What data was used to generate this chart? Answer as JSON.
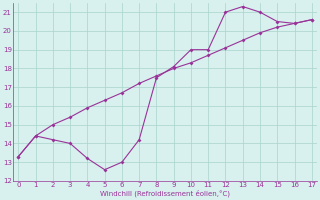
{
  "line1_x": [
    0,
    1,
    2,
    3,
    4,
    5,
    6,
    7,
    8,
    9,
    10,
    11,
    12,
    13,
    14,
    15,
    16,
    17
  ],
  "line1_y": [
    13.3,
    14.4,
    14.2,
    14.0,
    13.2,
    12.6,
    13.0,
    14.2,
    17.5,
    18.1,
    19.0,
    19.0,
    21.0,
    21.3,
    21.0,
    20.5,
    20.4,
    20.6
  ],
  "line2_x": [
    0,
    1,
    2,
    3,
    4,
    5,
    6,
    7,
    8,
    9,
    10,
    11,
    12,
    13,
    14,
    15,
    16,
    17
  ],
  "line2_y": [
    13.3,
    14.4,
    15.0,
    15.4,
    15.9,
    16.3,
    16.7,
    17.2,
    17.6,
    18.0,
    18.3,
    18.7,
    19.1,
    19.5,
    19.9,
    20.2,
    20.4,
    20.6
  ],
  "color": "#993399",
  "xlabel": "Windchill (Refroidissement éolien,°C)",
  "ylim": [
    12,
    21.5
  ],
  "xlim": [
    -0.3,
    17.3
  ],
  "yticks": [
    12,
    13,
    14,
    15,
    16,
    17,
    18,
    19,
    20,
    21
  ],
  "xticks": [
    0,
    1,
    2,
    3,
    4,
    5,
    6,
    7,
    8,
    9,
    10,
    11,
    12,
    13,
    14,
    15,
    16,
    17
  ],
  "bg_color": "#d8f0ee",
  "grid_color": "#aad4cc"
}
